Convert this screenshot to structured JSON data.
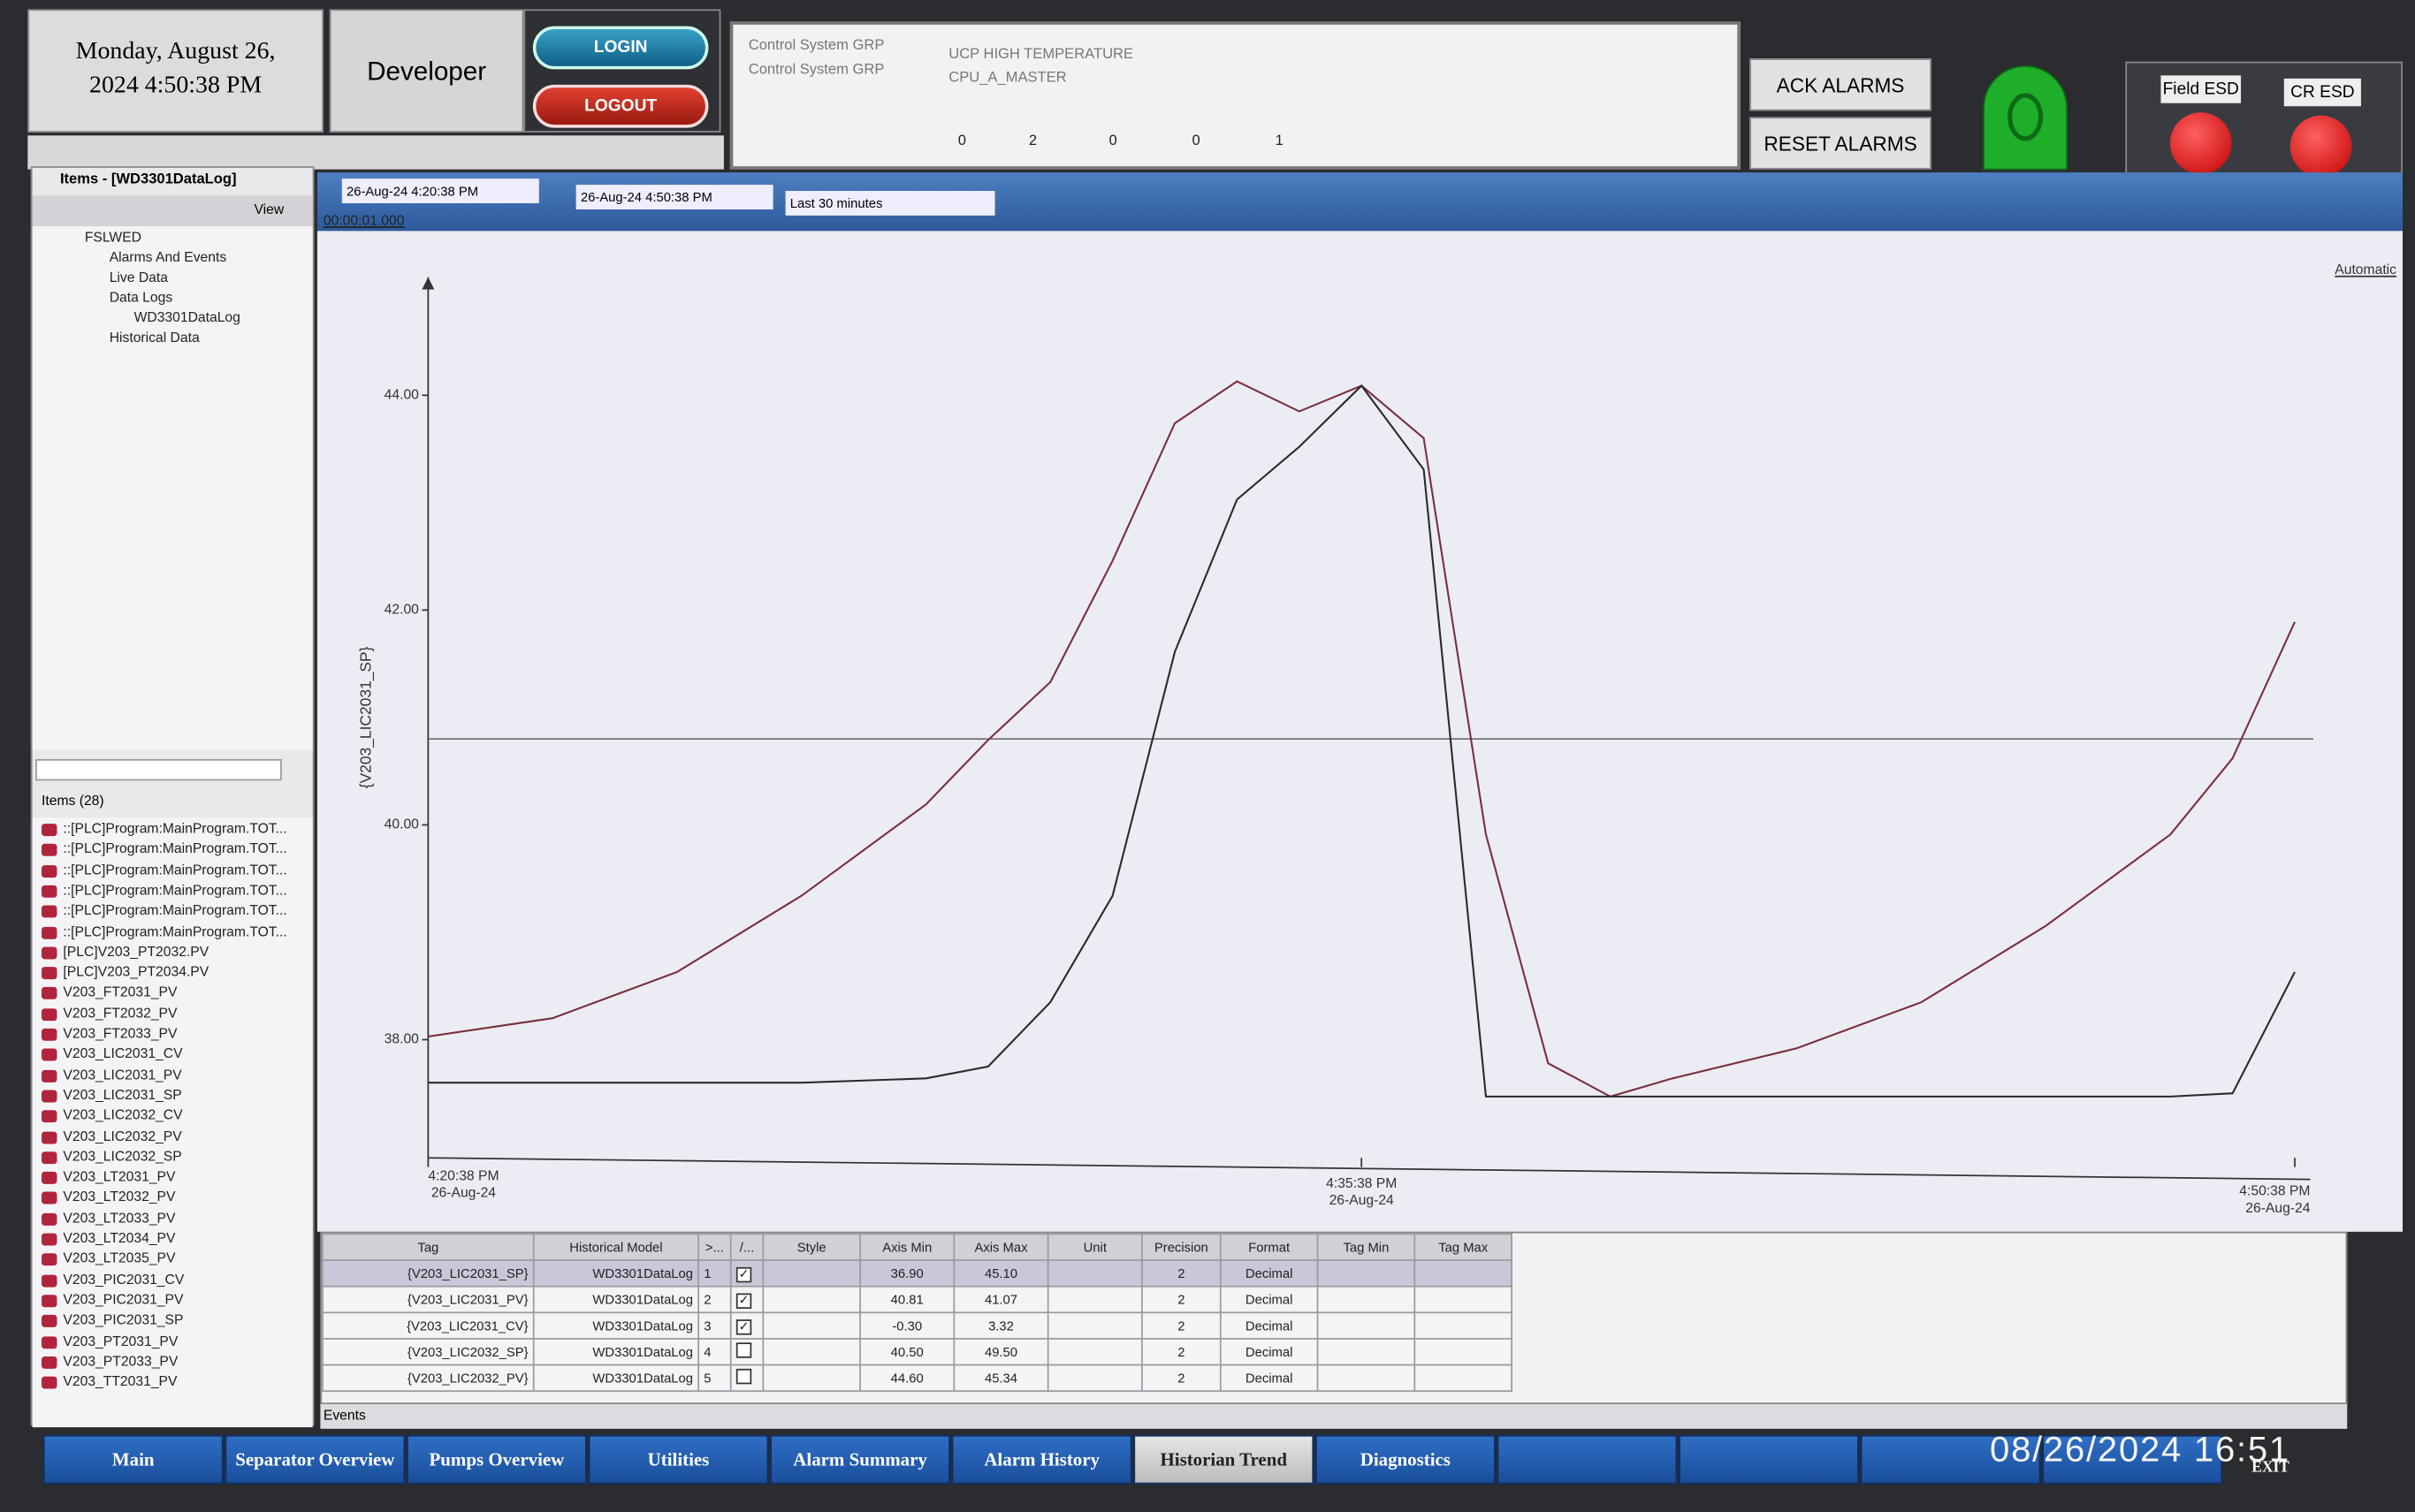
{
  "header": {
    "date_line1": "Monday, August 26,",
    "date_line2": "2024 4:50:38 PM",
    "user": "Developer",
    "login": "LOGIN",
    "logout": "LOGOUT"
  },
  "alarm_banner": {
    "rows": [
      {
        "group": "Control System GRP",
        "message": "UCP HIGH TEMPERATURE"
      },
      {
        "group": "Control System GRP",
        "message": "CPU_A_MASTER"
      }
    ],
    "counts": [
      "0",
      "2",
      "0",
      "0",
      "1"
    ]
  },
  "alarm_buttons": {
    "ack": "ACK ALARMS",
    "reset": "RESET ALARMS",
    "field_esd": "Field ESD",
    "cr_esd": "CR ESD"
  },
  "sidebar": {
    "title": "Items - [WD3301DataLog]",
    "view": "View",
    "tree": [
      {
        "label": "FSLWED",
        "level": 0
      },
      {
        "label": "Alarms And Events",
        "level": 1
      },
      {
        "label": "Live Data",
        "level": 1
      },
      {
        "label": "Data Logs",
        "level": 1
      },
      {
        "label": "WD3301DataLog",
        "level": 2
      },
      {
        "label": "Historical Data",
        "level": 1
      }
    ],
    "items_count": "Items (28)",
    "items": [
      "::[PLC]Program:MainProgram.TOT...",
      "::[PLC]Program:MainProgram.TOT...",
      "::[PLC]Program:MainProgram.TOT...",
      "::[PLC]Program:MainProgram.TOT...",
      "::[PLC]Program:MainProgram.TOT...",
      "::[PLC]Program:MainProgram.TOT...",
      "[PLC]V203_PT2032.PV",
      "[PLC]V203_PT2034.PV",
      "V203_FT2031_PV",
      "V203_FT2032_PV",
      "V203_FT2033_PV",
      "V203_LIC2031_CV",
      "V203_LIC2031_PV",
      "V203_LIC2031_SP",
      "V203_LIC2032_CV",
      "V203_LIC2032_PV",
      "V203_LIC2032_SP",
      "V203_LT2031_PV",
      "V203_LT2032_PV",
      "V203_LT2033_PV",
      "V203_LT2034_PV",
      "V203_LT2035_PV",
      "V203_PIC2031_CV",
      "V203_PIC2031_PV",
      "V203_PIC2031_SP",
      "V203_PT2031_PV",
      "V203_PT2033_PV",
      "V203_TT2031_PV"
    ]
  },
  "trend": {
    "start": "26-Aug-24  4:20:38 PM",
    "end": "26-Aug-24  4:50:38 PM",
    "range": "Last 30 minutes",
    "interval": "00:00:01.000",
    "mode": "Automatic"
  },
  "chart_data": {
    "type": "line",
    "y_label": "{V203_LIC2031_SP}",
    "x": [
      0,
      2,
      4,
      6,
      8,
      9,
      10,
      11,
      12,
      13,
      14,
      15,
      16,
      17,
      18,
      19,
      20,
      22,
      24,
      26,
      28,
      29,
      30
    ],
    "xlim": [
      0,
      30
    ],
    "xticks": [
      {
        "value": 0,
        "label": "4:20:38 PM"
      },
      {
        "value": 15,
        "label": "4:35:38 PM"
      },
      {
        "value": 30,
        "label": "4:50:38 PM"
      }
    ],
    "xtick_dates": [
      "26-Aug-24",
      "26-Aug-24",
      "26-Aug-24"
    ],
    "ylim": [
      36.9,
      45.1
    ],
    "yticks": [
      {
        "value": 38,
        "label": "38.00"
      },
      {
        "value": 40,
        "label": "40.00"
      },
      {
        "value": 42,
        "label": "42.00"
      },
      {
        "value": 44,
        "label": "44.00"
      }
    ],
    "reference_line": 40.8,
    "series": [
      {
        "color": "#7a2f3c",
        "values": [
          38.03,
          38.2,
          38.63,
          39.34,
          40.19,
          40.79,
          41.33,
          42.46,
          43.74,
          44.13,
          43.85,
          44.09,
          43.6,
          39.91,
          37.78,
          37.47,
          37.64,
          37.92,
          38.35,
          39.06,
          39.91,
          40.62,
          41.89
        ]
      },
      {
        "color": "#2a2a2e",
        "values": [
          37.6,
          37.6,
          37.6,
          37.6,
          37.64,
          37.75,
          38.35,
          39.34,
          41.61,
          43.03,
          43.52,
          44.09,
          43.31,
          37.47,
          37.47,
          37.47,
          37.47,
          37.47,
          37.47,
          37.47,
          37.47,
          37.5,
          38.63
        ]
      }
    ]
  },
  "tag_table": {
    "headers": [
      "Tag",
      "Historical Model",
      ">...",
      "/...",
      "Style",
      "Axis Min",
      "Axis Max",
      "Unit",
      "Precision",
      "Format",
      "Tag Min",
      "Tag Max"
    ],
    "rows": [
      {
        "tag": "{V203_LIC2031_SP}",
        "model": "WD3301DataLog",
        "index": "1",
        "visible": true,
        "axis_min": "36.90",
        "axis_max": "45.10",
        "precision": "2",
        "format": "Decimal"
      },
      {
        "tag": "{V203_LIC2031_PV}",
        "model": "WD3301DataLog",
        "index": "2",
        "visible": true,
        "axis_min": "40.81",
        "axis_max": "41.07",
        "precision": "2",
        "format": "Decimal"
      },
      {
        "tag": "{V203_LIC2031_CV}",
        "model": "WD3301DataLog",
        "index": "3",
        "visible": true,
        "axis_min": "-0.30",
        "axis_max": "3.32",
        "precision": "2",
        "format": "Decimal"
      },
      {
        "tag": "{V203_LIC2032_SP}",
        "model": "WD3301DataLog",
        "index": "4",
        "visible": false,
        "axis_min": "40.50",
        "axis_max": "49.50",
        "precision": "2",
        "format": "Decimal"
      },
      {
        "tag": "{V203_LIC2032_PV}",
        "model": "WD3301DataLog",
        "index": "5",
        "visible": false,
        "axis_min": "44.60",
        "axis_max": "45.34",
        "precision": "2",
        "format": "Decimal"
      }
    ]
  },
  "events": "Events",
  "nav": {
    "tabs": [
      "Main",
      "Separator Overview",
      "Pumps Overview",
      "Utilities",
      "Alarm Summary",
      "Alarm History",
      "Historian Trend",
      "Diagnostics"
    ],
    "active": 6,
    "exit": "EXIT"
  },
  "timestamp": "08/26/2024  16:51"
}
